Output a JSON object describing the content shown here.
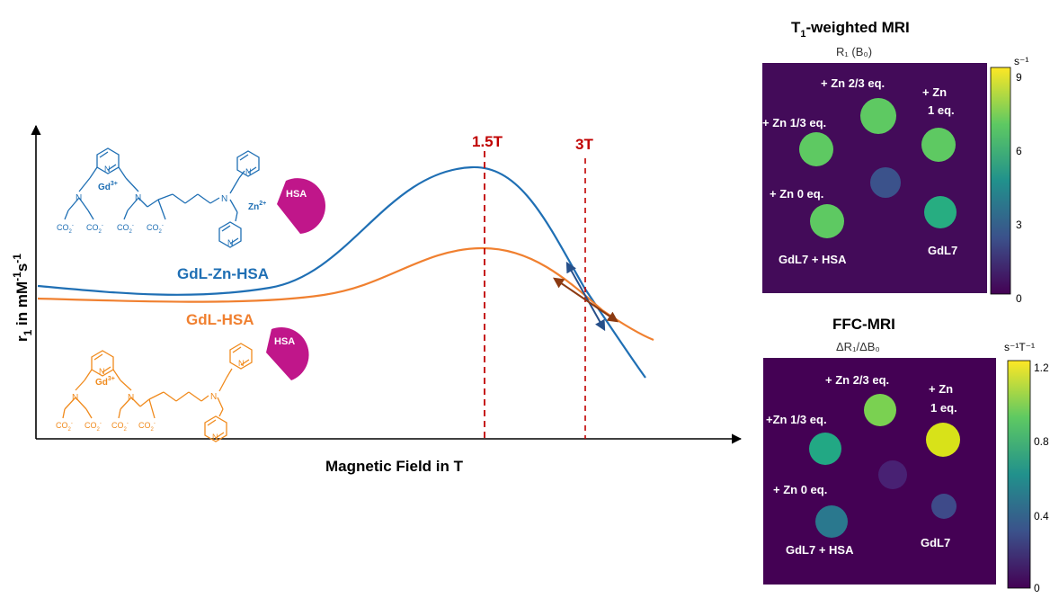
{
  "plot": {
    "x_axis_label": "Magnetic Field in T",
    "y_axis_label_main": "r",
    "y_axis_label_sub": "1",
    "y_axis_label_rest": " in mM",
    "y_axis_label_exp1": "-1",
    "y_axis_label_s": "s",
    "y_axis_label_exp2": "-1",
    "marker_1": "1.5T",
    "marker_2": "3T",
    "series": [
      {
        "name": "GdL-Zn-HSA",
        "color": "#1f6fb4"
      },
      {
        "name": "GdL-HSA",
        "color": "#f08030"
      }
    ],
    "marker_color": "#c00000"
  },
  "molecules": {
    "blue": {
      "gd_label": "Gd",
      "gd_charge": "3+",
      "zn_label": "Zn",
      "zn_charge": "2+",
      "hsa_label": "HSA",
      "carboxylates": [
        "CO",
        "CO",
        "CO",
        "CO"
      ]
    },
    "orange": {
      "gd_label": "Gd",
      "gd_charge": "3+",
      "hsa_label": "HSA"
    },
    "hsa_color": "#c0168a"
  },
  "panels": [
    {
      "title_main": "T",
      "title_sub": "1",
      "title_rest": "-weighted MRI",
      "subtitle": "R₁ (B₀)",
      "colorbar_unit": "s⁻¹",
      "colorbar_ticks": [
        "9",
        "6",
        "3",
        "0"
      ],
      "labels": {
        "zn_two_thirds": "+ Zn 2/3 eq.",
        "zn_one": "+ Zn",
        "zn_one_eq": "1 eq.",
        "zn_one_third": "+ Zn 1/3 eq.",
        "zn_zero": "+ Zn  0 eq.",
        "gdl7_hsa": "GdL7 + HSA",
        "gdl7": "GdL7"
      }
    },
    {
      "title_main": "FFC-MRI",
      "subtitle": "ΔR₁/ΔB₀",
      "colorbar_unit": "s⁻¹T⁻¹",
      "colorbar_ticks": [
        "1.2",
        "0.8",
        "0.4",
        "0"
      ],
      "labels": {
        "zn_two_thirds": "+ Zn 2/3 eq.",
        "zn_one": "+ Zn",
        "zn_one_eq": "1 eq.",
        "zn_one_third": "+Zn 1/3 eq.",
        "zn_zero": "+ Zn  0 eq.",
        "gdl7_hsa": "GdL7 + HSA",
        "gdl7": "GdL7"
      }
    }
  ]
}
